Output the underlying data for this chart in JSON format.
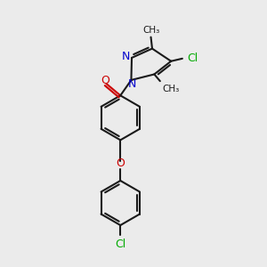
{
  "bg_color": "#ebebeb",
  "bond_color": "#1a1a1a",
  "N_color": "#0000cc",
  "O_color": "#cc0000",
  "Cl_color": "#00aa00",
  "line_width": 1.5,
  "font_size": 8.5,
  "xlim": [
    0,
    10
  ],
  "ylim": [
    0,
    10
  ]
}
